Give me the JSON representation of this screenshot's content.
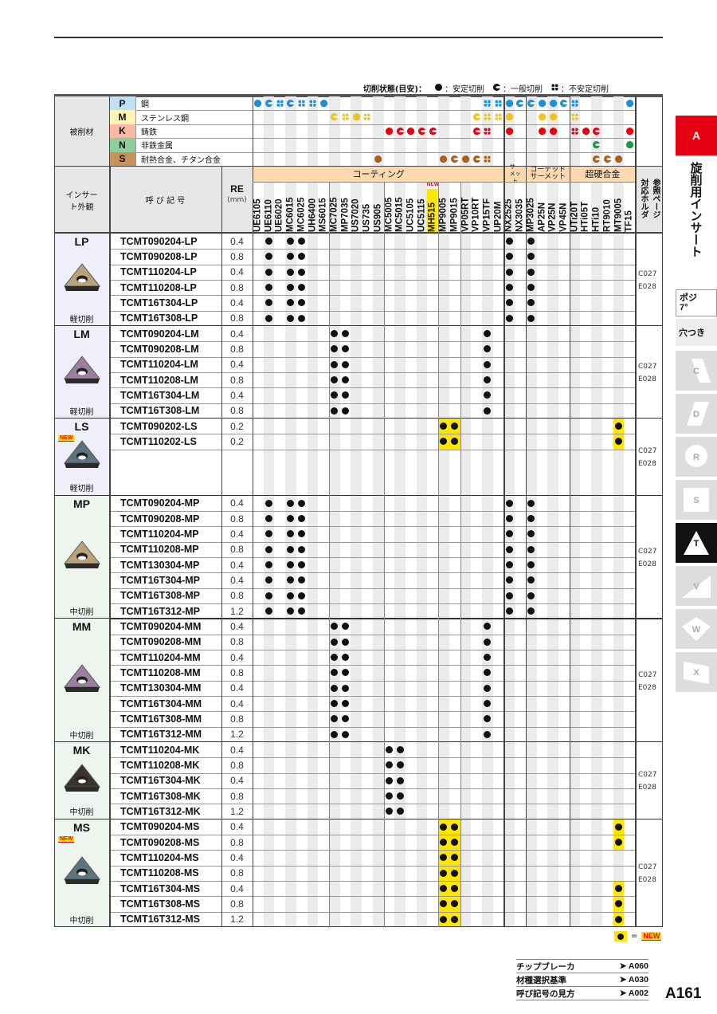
{
  "legend": {
    "title": "切削状態(目安)：",
    "stable": "：安定切削",
    "general": "：一般切削",
    "unstable": "：不安定切削"
  },
  "colors": {
    "P": "#1b8fdc",
    "M": "#f3c21b",
    "K": "#e60012",
    "N": "#1a9b48",
    "S": "#a8611e",
    "P_bg": "#bfe0f5",
    "M_bg": "#fff4b3",
    "K_bg": "#f7b9a6",
    "N_bg": "#8ccf9e",
    "S_bg": "#c9925c",
    "category_bg": "#fcd9ae",
    "new_yellow": "#ffe600",
    "accent_red": "#e60012"
  },
  "header": {
    "workpiece_label": "被削材",
    "insert_label": "インサート外観",
    "designation_label": "呼 び 記 号",
    "re_label": "RE",
    "re_unit": "(mm)",
    "ref_label": "参照ページ",
    "ref_label2": "対応ホルダ"
  },
  "materials": [
    {
      "code": "P",
      "name": "鋼"
    },
    {
      "code": "M",
      "name": "ステンレス鋼"
    },
    {
      "code": "K",
      "name": "鋳鉄"
    },
    {
      "code": "N",
      "name": "非鉄金属"
    },
    {
      "code": "S",
      "name": "耐熱合金、チタン合金"
    }
  ],
  "categories": [
    {
      "name": "コーティング",
      "from": 0,
      "to": 22
    },
    {
      "name": "サーメット",
      "from": 23,
      "to": 24
    },
    {
      "name": "コーテッドサーメット",
      "from": 25,
      "to": 28
    },
    {
      "name": "超硬合金",
      "from": 29,
      "to": 34
    }
  ],
  "grades": [
    "UE6105",
    "UE6110",
    "UE6020",
    "MC6015",
    "MC6025",
    "UH6400",
    "MS6015",
    "MC7025",
    "MP7035",
    "US7020",
    "US735",
    "US905",
    "MC5005",
    "MC5015",
    "UC5105",
    "UC5115",
    "MH515",
    "MP9005",
    "MP9015",
    "VP05RT",
    "VP10RT",
    "VP15TF",
    "UP20M",
    "NX2525",
    "NX3035",
    "MP3025",
    "AP25N",
    "VP25N",
    "VP45N",
    "UTi20T",
    "HTi05T",
    "HTi10",
    "RT9010",
    "MT9005",
    "TF15"
  ],
  "new_grade": "MH515",
  "new_label": "NEW",
  "workpiece_marks": {
    "P": [
      [
        0,
        "stable"
      ],
      [
        1,
        "general"
      ],
      [
        2,
        "unstable"
      ],
      [
        3,
        "general"
      ],
      [
        4,
        "unstable"
      ],
      [
        5,
        "unstable"
      ],
      [
        6,
        "stable"
      ],
      [
        21,
        "unstable"
      ],
      [
        22,
        "unstable"
      ],
      [
        23,
        "stable"
      ],
      [
        24,
        "general"
      ],
      [
        25,
        "general"
      ],
      [
        26,
        "stable"
      ],
      [
        27,
        "stable"
      ],
      [
        28,
        "general"
      ],
      [
        29,
        "unstable"
      ],
      [
        34,
        "stable"
      ]
    ],
    "M": [
      [
        7,
        "general"
      ],
      [
        8,
        "unstable"
      ],
      [
        9,
        "stable"
      ],
      [
        10,
        "unstable"
      ],
      [
        20,
        "general"
      ],
      [
        21,
        "unstable"
      ],
      [
        22,
        "unstable"
      ],
      [
        23,
        "stable"
      ],
      [
        26,
        "stable"
      ],
      [
        27,
        "stable"
      ],
      [
        29,
        "unstable"
      ]
    ],
    "K": [
      [
        12,
        "stable"
      ],
      [
        13,
        "general"
      ],
      [
        14,
        "stable"
      ],
      [
        15,
        "general"
      ],
      [
        16,
        "general"
      ],
      [
        20,
        "general"
      ],
      [
        21,
        "unstable"
      ],
      [
        23,
        "stable"
      ],
      [
        26,
        "stable"
      ],
      [
        27,
        "stable"
      ],
      [
        29,
        "unstable"
      ],
      [
        30,
        "stable"
      ],
      [
        31,
        "general"
      ],
      [
        34,
        "stable"
      ]
    ],
    "N": [
      [
        31,
        "general"
      ],
      [
        34,
        "stable"
      ]
    ],
    "S": [
      [
        11,
        "stable"
      ],
      [
        17,
        "stable"
      ],
      [
        18,
        "general"
      ],
      [
        19,
        "stable"
      ],
      [
        20,
        "general"
      ],
      [
        21,
        "unstable"
      ],
      [
        31,
        "general"
      ],
      [
        32,
        "general"
      ],
      [
        33,
        "stable"
      ]
    ]
  },
  "groups": [
    {
      "name": "LP",
      "type": "軽切削",
      "color": "#b9a27c",
      "new": false,
      "ref": [
        "C027",
        "E028"
      ],
      "rows": [
        {
          "code": "TCMT090204-LP",
          "re": "0.4",
          "marks": [
            1,
            3,
            4,
            23,
            25
          ]
        },
        {
          "code": "TCMT090208-LP",
          "re": "0.8",
          "marks": [
            1,
            3,
            4,
            23,
            25
          ]
        },
        {
          "code": "TCMT110204-LP",
          "re": "0.4",
          "marks": [
            1,
            3,
            4,
            23,
            25
          ]
        },
        {
          "code": "TCMT110208-LP",
          "re": "0.8",
          "marks": [
            1,
            3,
            4,
            23,
            25
          ]
        },
        {
          "code": "TCMT16T304-LP",
          "re": "0.4",
          "marks": [
            1,
            3,
            4,
            23,
            25
          ]
        },
        {
          "code": "TCMT16T308-LP",
          "re": "0.8",
          "marks": [
            1,
            3,
            4,
            23,
            25
          ]
        }
      ]
    },
    {
      "name": "LM",
      "type": "軽切削",
      "color": "#9c7ea0",
      "new": false,
      "ref": [
        "C027",
        "E028"
      ],
      "rows": [
        {
          "code": "TCMT090204-LM",
          "re": "0.4",
          "marks": [
            7,
            8,
            21
          ]
        },
        {
          "code": "TCMT090208-LM",
          "re": "0.8",
          "marks": [
            7,
            8,
            21
          ]
        },
        {
          "code": "TCMT110204-LM",
          "re": "0.4",
          "marks": [
            7,
            8,
            21
          ]
        },
        {
          "code": "TCMT110208-LM",
          "re": "0.8",
          "marks": [
            7,
            8,
            21
          ]
        },
        {
          "code": "TCMT16T304-LM",
          "re": "0.4",
          "marks": [
            7,
            8,
            21
          ]
        },
        {
          "code": "TCMT16T308-LM",
          "re": "0.8",
          "marks": [
            7,
            8,
            21
          ]
        }
      ]
    },
    {
      "name": "LS",
      "type": "軽切削",
      "color": "#5c7480",
      "new": true,
      "ref": [
        "C027",
        "E028"
      ],
      "extra": 3,
      "rows": [
        {
          "code": "TCMT090202-LS",
          "re": "0.2",
          "marks": [
            17,
            18,
            33
          ],
          "new": [
            17,
            18,
            33
          ]
        },
        {
          "code": "TCMT110202-LS",
          "re": "0.2",
          "marks": [
            17,
            18,
            33
          ],
          "new": [
            17,
            18,
            33
          ]
        }
      ]
    },
    {
      "name": "MP",
      "type": "中切削",
      "color": "#b9a27c",
      "new": false,
      "ref": [
        "C027",
        "E028"
      ],
      "rows": [
        {
          "code": "TCMT090204-MP",
          "re": "0.4",
          "marks": [
            1,
            3,
            4,
            23,
            25
          ]
        },
        {
          "code": "TCMT090208-MP",
          "re": "0.8",
          "marks": [
            1,
            3,
            4,
            23,
            25
          ]
        },
        {
          "code": "TCMT110204-MP",
          "re": "0.4",
          "marks": [
            1,
            3,
            4,
            23,
            25
          ]
        },
        {
          "code": "TCMT110208-MP",
          "re": "0.8",
          "marks": [
            1,
            3,
            4,
            23,
            25
          ]
        },
        {
          "code": "TCMT130304-MP",
          "re": "0.4",
          "marks": [
            1,
            3,
            4,
            23,
            25
          ]
        },
        {
          "code": "TCMT16T304-MP",
          "re": "0.4",
          "marks": [
            1,
            3,
            4,
            23,
            25
          ]
        },
        {
          "code": "TCMT16T308-MP",
          "re": "0.8",
          "marks": [
            1,
            3,
            4,
            23,
            25
          ]
        },
        {
          "code": "TCMT16T312-MP",
          "re": "1.2",
          "marks": [
            1,
            3,
            4,
            23,
            25
          ]
        }
      ]
    },
    {
      "name": "MM",
      "type": "中切削",
      "color": "#9c7ea0",
      "new": false,
      "ref": [
        "C027",
        "E028"
      ],
      "rows": [
        {
          "code": "TCMT090204-MM",
          "re": "0.4",
          "marks": [
            7,
            8,
            21
          ]
        },
        {
          "code": "TCMT090208-MM",
          "re": "0.8",
          "marks": [
            7,
            8,
            21
          ]
        },
        {
          "code": "TCMT110204-MM",
          "re": "0.4",
          "marks": [
            7,
            8,
            21
          ]
        },
        {
          "code": "TCMT110208-MM",
          "re": "0.8",
          "marks": [
            7,
            8,
            21
          ]
        },
        {
          "code": "TCMT130304-MM",
          "re": "0.4",
          "marks": [
            7,
            8,
            21
          ]
        },
        {
          "code": "TCMT16T304-MM",
          "re": "0.4",
          "marks": [
            7,
            8,
            21
          ]
        },
        {
          "code": "TCMT16T308-MM",
          "re": "0.8",
          "marks": [
            7,
            8,
            21
          ]
        },
        {
          "code": "TCMT16T312-MM",
          "re": "1.2",
          "marks": [
            7,
            8,
            21
          ]
        }
      ]
    },
    {
      "name": "MK",
      "type": "中切削",
      "color": "#3a3330",
      "new": false,
      "ref": [
        "C027",
        "E028"
      ],
      "rows": [
        {
          "code": "TCMT110204-MK",
          "re": "0.4",
          "marks": [
            12,
            13
          ]
        },
        {
          "code": "TCMT110208-MK",
          "re": "0.8",
          "marks": [
            12,
            13
          ]
        },
        {
          "code": "TCMT16T304-MK",
          "re": "0.4",
          "marks": [
            12,
            13
          ]
        },
        {
          "code": "TCMT16T308-MK",
          "re": "0.8",
          "marks": [
            12,
            13
          ]
        },
        {
          "code": "TCMT16T312-MK",
          "re": "1.2",
          "marks": [
            12,
            13
          ]
        }
      ]
    },
    {
      "name": "MS",
      "type": "中切削",
      "color": "#5c7480",
      "new": true,
      "ref": [
        "C027",
        "E028"
      ],
      "rows": [
        {
          "code": "TCMT090204-MS",
          "re": "0.4",
          "marks": [
            17,
            18,
            33
          ],
          "new": [
            17,
            18,
            33
          ]
        },
        {
          "code": "TCMT090208-MS",
          "re": "0.8",
          "marks": [
            17,
            18,
            33
          ],
          "new": [
            17,
            18,
            33
          ]
        },
        {
          "code": "TCMT110204-MS",
          "re": "0.4",
          "marks": [
            17,
            18
          ],
          "new": [
            17,
            18
          ]
        },
        {
          "code": "TCMT110208-MS",
          "re": "0.8",
          "marks": [
            17,
            18
          ],
          "new": [
            17,
            18
          ]
        },
        {
          "code": "TCMT16T304-MS",
          "re": "0.4",
          "marks": [
            17,
            18,
            33
          ],
          "new": [
            17,
            18,
            33
          ]
        },
        {
          "code": "TCMT16T308-MS",
          "re": "0.8",
          "marks": [
            17,
            18,
            33
          ],
          "new": [
            17,
            18,
            33
          ]
        },
        {
          "code": "TCMT16T312-MS",
          "re": "1.2",
          "marks": [
            17,
            18,
            33
          ],
          "new": [
            17,
            18,
            33
          ]
        }
      ]
    }
  ],
  "new_legend": {
    "eq": "=",
    "label": "NEW"
  },
  "footer": [
    {
      "label": "チップブレーカ",
      "ref": "A060"
    },
    {
      "label": "材種選択基準",
      "ref": "A030"
    },
    {
      "label": "呼び記号の見方",
      "ref": "A002"
    }
  ],
  "page_number": "A161",
  "side": {
    "section": "A",
    "section_title": "旋削用インサート",
    "posi": "ポジ",
    "posi_angle": "7°",
    "hole": "穴つき",
    "tabs": [
      "C",
      "D",
      "R",
      "S",
      "T",
      "V",
      "W",
      "X"
    ],
    "active_tab": "T"
  }
}
